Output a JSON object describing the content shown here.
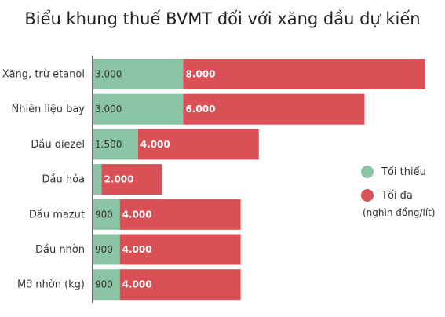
{
  "chart_data": {
    "type": "bar",
    "stacked": true,
    "orientation": "horizontal",
    "title": "Biểu khung thuế BVMT đối với xăng dầu dự kiến",
    "unit_note": "(nghìn đồng/lít)",
    "legend_position": "right",
    "categories": [
      "Xăng, trừ etanol",
      "Nhiên liệu bay",
      "Dầu diezel",
      "Dầu hỏa",
      "Dầu mazut",
      "Dầu nhờn",
      "Mỡ nhờn (kg)"
    ],
    "series": [
      {
        "name": "Tối thiểu",
        "color": "#8ac4a4",
        "values": [
          3000,
          3000,
          1500,
          300,
          900,
          900,
          900
        ],
        "labels": [
          "3.000",
          "3.000",
          "1.500",
          "",
          "900",
          "900",
          "900"
        ]
      },
      {
        "name": "Tối đa",
        "color": "#d95056",
        "values": [
          8000,
          6000,
          4000,
          2000,
          4000,
          4000,
          4000
        ],
        "labels": [
          "8.000",
          "6.000",
          "4.000",
          "2.000",
          "4.000",
          "4.000",
          "4.000"
        ]
      }
    ]
  }
}
